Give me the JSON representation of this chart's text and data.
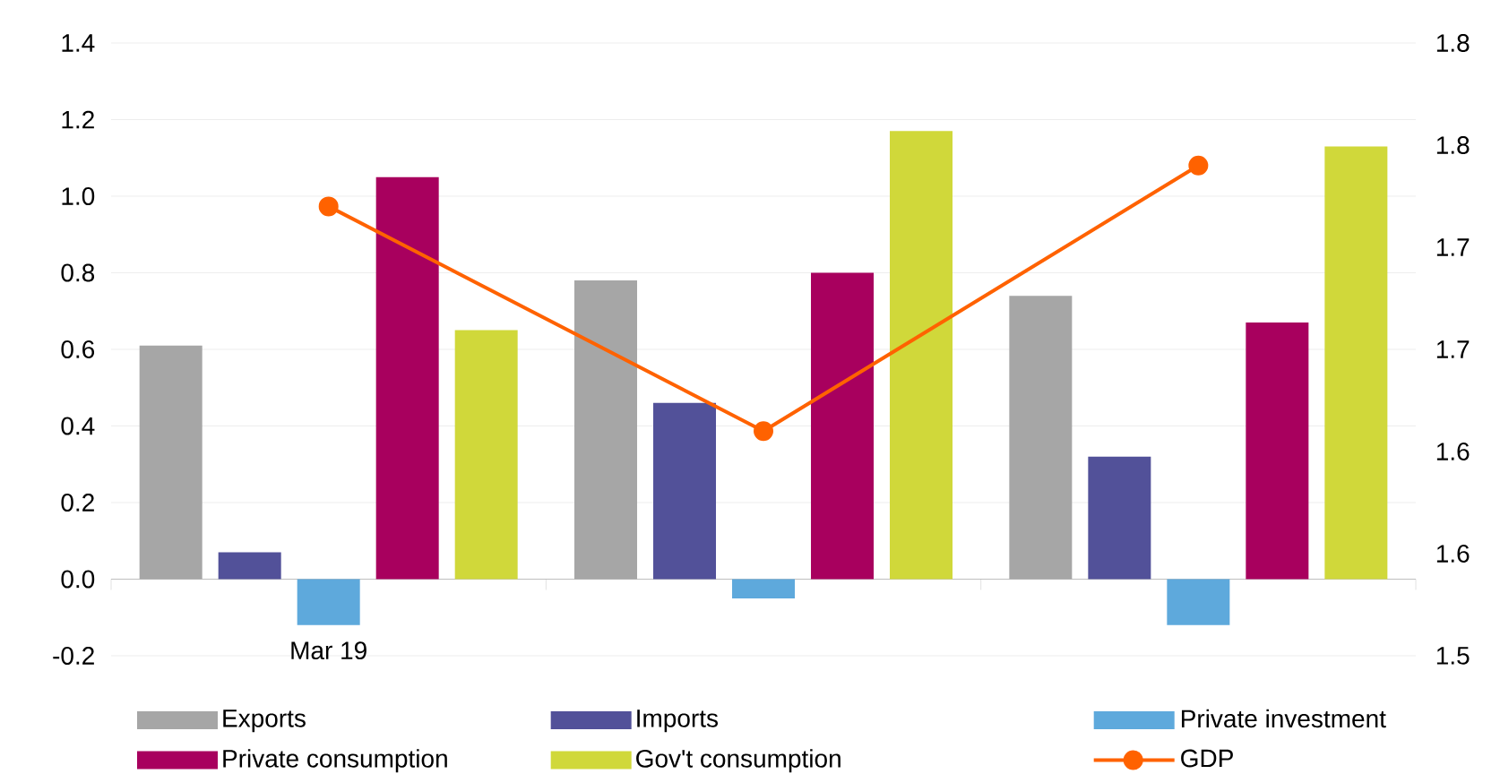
{
  "chart_data": {
    "type": "bar",
    "categories": [
      "Mar 19",
      null,
      null
    ],
    "series": [
      {
        "name": "Exports",
        "color": "#a6a6a6",
        "values": [
          0.61,
          0.78,
          0.74
        ]
      },
      {
        "name": "Imports",
        "color": "#525199",
        "values": [
          0.07,
          0.46,
          0.32
        ]
      },
      {
        "name": "Private investment",
        "color": "#5ea9dc",
        "values": [
          -0.12,
          -0.05,
          -0.12
        ]
      },
      {
        "name": "Private consumption",
        "color": "#a8005e",
        "values": [
          1.05,
          0.8,
          0.67
        ]
      },
      {
        "name": "Gov't consumption",
        "color": "#d0d83a",
        "values": [
          0.65,
          1.17,
          1.13
        ]
      },
      {
        "name": "GDP",
        "type": "line",
        "axis": "y2",
        "marker": "circle",
        "color": "#ff6200",
        "values": [
          1.72,
          1.61,
          1.74
        ]
      }
    ],
    "ylim": [
      -0.2,
      1.4
    ],
    "yticks": [
      {
        "value": -0.2,
        "label": "-0.2"
      },
      {
        "value": 0,
        "label": "0.0"
      },
      {
        "value": 0.2,
        "label": "0.2"
      },
      {
        "value": 0.4,
        "label": "0.4"
      },
      {
        "value": 0.6,
        "label": "0.6"
      },
      {
        "value": 0.8,
        "label": "0.8"
      },
      {
        "value": 1.0,
        "label": "1.0"
      },
      {
        "value": 1.2,
        "label": "1.2"
      },
      {
        "value": 1.4,
        "label": "1.4"
      }
    ],
    "y2lim": [
      1.5,
      1.8
    ],
    "y2ticks": [
      {
        "value": 1.5,
        "label": "1.5"
      },
      {
        "value": 1.55,
        "label": "1.6"
      },
      {
        "value": 1.6,
        "label": "1.6"
      },
      {
        "value": 1.65,
        "label": "1.7"
      },
      {
        "value": 1.7,
        "label": "1.7"
      },
      {
        "value": 1.75,
        "label": "1.8"
      },
      {
        "value": 1.8,
        "label": "1.8"
      }
    ],
    "grid": "y",
    "legend": "bottom"
  }
}
